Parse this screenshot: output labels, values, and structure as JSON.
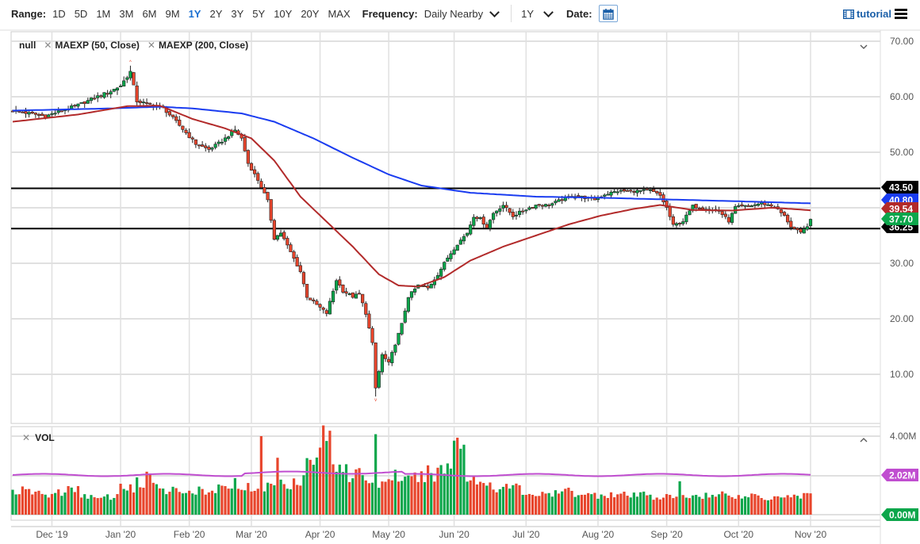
{
  "toolbar": {
    "range_label": "Range:",
    "ranges": [
      "1D",
      "5D",
      "1M",
      "3M",
      "6M",
      "9M",
      "1Y",
      "2Y",
      "3Y",
      "5Y",
      "10Y",
      "20Y",
      "MAX"
    ],
    "active_range": "1Y",
    "frequency_label": "Frequency:",
    "frequency_value": "Daily Nearby",
    "period_value": "1Y",
    "date_label": "Date:",
    "tutorial_label": "tutorial"
  },
  "legend": {
    "series_name": "null",
    "ma50_label": "MAEXP (50, Close)",
    "ma200_label": "MAEXP (200, Close)",
    "volume_label": "VOL"
  },
  "colors": {
    "up": "#0ca64b",
    "down": "#e8452c",
    "ma50": "#b22a2a",
    "ma200": "#1a3cf0",
    "vol_avg": "#c04ed0",
    "hline": "#000000",
    "grid": "#e0e0e0"
  },
  "chart_data": {
    "type": "candlestick",
    "title": "",
    "xlabel": "",
    "ylabel": "",
    "ylim": [
      0,
      72
    ],
    "grid": true,
    "y_ticks": [
      "70.00",
      "60.00",
      "50.00",
      "40.00",
      "30.00",
      "20.00",
      "10.00"
    ],
    "y_tick_values": [
      70,
      60,
      50,
      40,
      30,
      20,
      10
    ],
    "x_ticks": [
      "Dec '19",
      "Jan '20",
      "Feb '20",
      "Mar '20",
      "Apr '20",
      "May '20",
      "Jun '20",
      "Jul '20",
      "Aug '20",
      "Sep '20",
      "Oct '20",
      "Nov '20"
    ],
    "x_tick_days": [
      12,
      33,
      54,
      73,
      94,
      115,
      135,
      157,
      179,
      200,
      222,
      244
    ],
    "total_days": 245,
    "close_keypoints": [
      [
        0,
        57.5
      ],
      [
        5,
        57
      ],
      [
        10,
        56.5
      ],
      [
        15,
        57.5
      ],
      [
        20,
        58.5
      ],
      [
        25,
        59.8
      ],
      [
        30,
        61
      ],
      [
        33,
        62
      ],
      [
        36,
        64.5
      ],
      [
        38,
        59.2
      ],
      [
        42,
        58.6
      ],
      [
        46,
        58
      ],
      [
        50,
        55.5
      ],
      [
        53,
        53.5
      ],
      [
        56,
        51.5
      ],
      [
        60,
        50.5
      ],
      [
        64,
        52
      ],
      [
        68,
        54
      ],
      [
        70,
        52.5
      ],
      [
        72,
        48
      ],
      [
        75,
        45
      ],
      [
        77,
        42.5
      ],
      [
        78,
        41.2
      ],
      [
        80,
        34.5
      ],
      [
        82,
        35.5
      ],
      [
        85,
        32
      ],
      [
        88,
        28.5
      ],
      [
        90,
        24
      ],
      [
        93,
        22.5
      ],
      [
        96,
        21
      ],
      [
        99,
        27
      ],
      [
        101,
        25
      ],
      [
        104,
        24
      ],
      [
        106,
        24.5
      ],
      [
        108,
        21
      ],
      [
        110,
        15.5
      ],
      [
        111,
        7.5
      ],
      [
        113,
        13.5
      ],
      [
        115,
        12
      ],
      [
        117,
        15.5
      ],
      [
        119,
        19
      ],
      [
        121,
        24
      ],
      [
        124,
        26
      ],
      [
        127,
        25.5
      ],
      [
        130,
        28
      ],
      [
        133,
        31
      ],
      [
        136,
        33.5
      ],
      [
        139,
        35.5
      ],
      [
        141,
        38.5
      ],
      [
        143,
        38
      ],
      [
        145,
        36.5
      ],
      [
        147,
        39
      ],
      [
        150,
        40.5
      ],
      [
        153,
        38.5
      ],
      [
        156,
        39.5
      ],
      [
        160,
        40.5
      ],
      [
        164,
        40.5
      ],
      [
        168,
        41.5
      ],
      [
        172,
        42.2
      ],
      [
        175,
        41.8
      ],
      [
        178,
        41.5
      ],
      [
        181,
        42.4
      ],
      [
        185,
        43
      ],
      [
        190,
        43
      ],
      [
        195,
        43.1
      ],
      [
        198,
        42.2
      ],
      [
        200,
        40
      ],
      [
        202,
        36.8
      ],
      [
        205,
        37.6
      ],
      [
        208,
        40.3
      ],
      [
        212,
        39.8
      ],
      [
        216,
        39.4
      ],
      [
        219,
        37.6
      ],
      [
        221,
        40.1
      ],
      [
        225,
        40.3
      ],
      [
        229,
        40.8
      ],
      [
        233,
        40.2
      ],
      [
        236,
        38.5
      ],
      [
        238,
        36.6
      ],
      [
        241,
        35.4
      ],
      [
        243,
        36.8
      ],
      [
        244,
        37.7
      ]
    ],
    "ma50_keypoints": [
      [
        0,
        55.5
      ],
      [
        20,
        56.8
      ],
      [
        35,
        58.3
      ],
      [
        45,
        58.4
      ],
      [
        55,
        56
      ],
      [
        65,
        54.3
      ],
      [
        73,
        52.5
      ],
      [
        80,
        48.5
      ],
      [
        88,
        42
      ],
      [
        96,
        37.5
      ],
      [
        104,
        33
      ],
      [
        112,
        28
      ],
      [
        118,
        26
      ],
      [
        124,
        25.8
      ],
      [
        132,
        27.5
      ],
      [
        140,
        30.5
      ],
      [
        150,
        33
      ],
      [
        160,
        35
      ],
      [
        170,
        37
      ],
      [
        180,
        38.6
      ],
      [
        190,
        39.8
      ],
      [
        198,
        40.5
      ],
      [
        208,
        39.6
      ],
      [
        220,
        39.5
      ],
      [
        232,
        40
      ],
      [
        238,
        39.8
      ],
      [
        244,
        39.54
      ]
    ],
    "ma200_keypoints": [
      [
        0,
        57.5
      ],
      [
        30,
        57.9
      ],
      [
        45,
        58.2
      ],
      [
        55,
        57.9
      ],
      [
        70,
        57
      ],
      [
        80,
        55.5
      ],
      [
        92,
        52.5
      ],
      [
        104,
        49
      ],
      [
        115,
        46
      ],
      [
        125,
        44
      ],
      [
        140,
        42.7
      ],
      [
        160,
        42
      ],
      [
        180,
        41.8
      ],
      [
        200,
        41.5
      ],
      [
        220,
        41.2
      ],
      [
        244,
        40.8
      ]
    ],
    "horizontal_lines": [
      43.5,
      36.25
    ],
    "price_labels": [
      {
        "value": 43.5,
        "text": "43.50",
        "color": "#000000"
      },
      {
        "value": 40.8,
        "text": "40.80",
        "color": "#1a3cf0"
      },
      {
        "value": 39.54,
        "text": "39.54",
        "color": "#b22a2a"
      },
      {
        "value": 36.25,
        "text": "36.25",
        "color": "#000000"
      },
      {
        "value": 37.7,
        "text": "37.70",
        "color": "#0ca64b"
      }
    ],
    "extremes": {
      "high": {
        "day": 36,
        "value": 65.6
      },
      "low": {
        "day": 111,
        "value": 6.0
      }
    },
    "volume": {
      "y_ticks": [
        "4.00M"
      ],
      "ylim": [
        0,
        4.2
      ],
      "avg_value": 2.02,
      "labels": [
        {
          "value": 2.02,
          "text": "2.02M",
          "color": "#c04ed0"
        },
        {
          "value": 0.0,
          "text": "0.00M",
          "color": "#0ca64b"
        }
      ],
      "weekly_values_m": [
        1.2,
        1.15,
        1.0,
        1.15,
        1.25,
        1.0,
        0.8,
        0.9,
        1.45,
        1.2,
        1.9,
        1.3,
        1.25,
        1.2,
        1.1,
        1.3,
        1.6,
        1.4,
        1.35,
        1.5,
        1.6,
        1.8,
        2.7,
        3.9,
        2.6,
        2.0,
        1.8,
        1.6,
        2.0,
        1.7,
        1.9,
        2.1,
        2.4,
        3.9,
        1.8,
        1.6,
        1.4,
        1.4,
        1.1,
        1.0,
        1.05,
        1.2,
        1.1,
        1.0,
        1.05,
        1.0,
        0.95,
        1.05,
        0.9,
        0.9,
        0.95,
        1.0,
        0.95,
        1.1,
        0.9,
        1.0,
        0.85,
        1.0,
        0.95,
        1.0
      ],
      "spikes": [
        [
          38,
          1.9
        ],
        [
          76,
          4.0
        ],
        [
          81,
          2.9
        ],
        [
          111,
          4.1
        ],
        [
          204,
          1.7
        ],
        [
          242,
          1.1
        ]
      ]
    }
  }
}
